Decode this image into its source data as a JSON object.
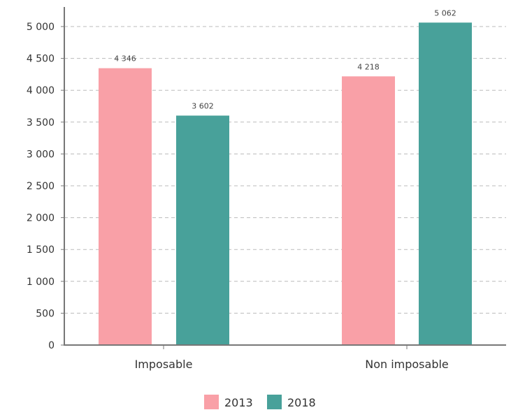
{
  "chart_data": {
    "type": "bar",
    "categories": [
      "Imposable",
      "Non imposable"
    ],
    "series": [
      {
        "name": "2013",
        "values": [
          4346,
          4218
        ],
        "labels": [
          "4 346",
          "4 218"
        ],
        "color": "#F9A0A7"
      },
      {
        "name": "2018",
        "values": [
          3602,
          5062
        ],
        "labels": [
          "3 602",
          "5 062"
        ],
        "color": "#48A19A"
      }
    ],
    "yticks": [
      0,
      500,
      1000,
      1500,
      2000,
      2500,
      3000,
      3500,
      4000,
      4500,
      5000
    ],
    "ytick_labels": [
      "0",
      "500",
      "1 000",
      "1 500",
      "2 000",
      "2 500",
      "3 000",
      "3 500",
      "4 000",
      "4 500",
      "5 000"
    ],
    "ylim": [
      0,
      5000
    ],
    "grid": true,
    "legend": "bottom-center",
    "title": "",
    "xlabel": "",
    "ylabel": ""
  }
}
